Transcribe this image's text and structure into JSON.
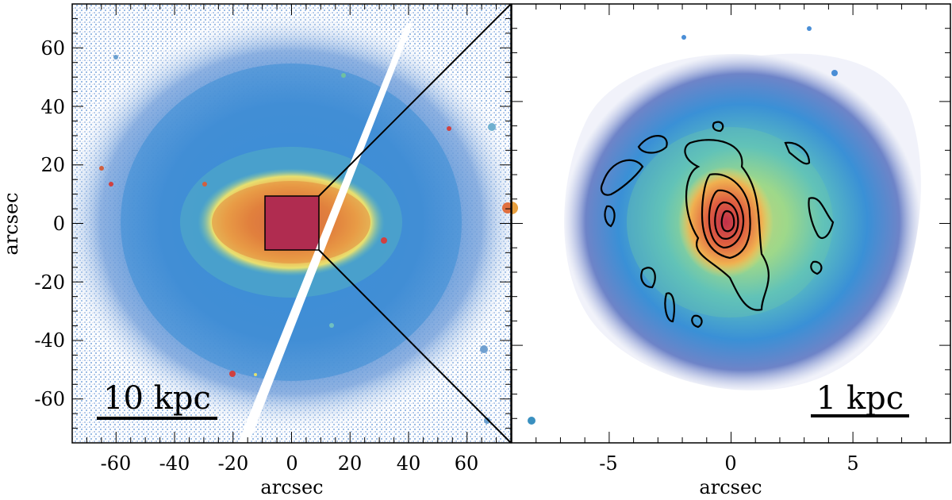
{
  "left_panel": {
    "scale_label": "10 kpc",
    "x_axis_title": "arcsec",
    "y_axis_title": "arcsec",
    "x_ticks": [
      "-60",
      "-40",
      "-20",
      "0",
      "20",
      "40",
      "60"
    ],
    "y_ticks": [
      "60",
      "40",
      "20",
      "0",
      "-20",
      "-40",
      "-60"
    ],
    "x_range": [
      -75,
      75
    ],
    "y_range": [
      -75,
      75
    ],
    "zoom_box_range": [
      -9,
      9
    ]
  },
  "right_panel": {
    "scale_label": "1 kpc",
    "x_axis_title": "arcsec",
    "x_ticks": [
      "-5",
      "0",
      "5"
    ],
    "x_range": [
      -9,
      9
    ]
  },
  "colors": {
    "outer": "#2f8fd0",
    "mid": "#6fb8b0",
    "yellow": "#e8e070",
    "orange": "#e88040",
    "core": "#b02c50",
    "halo": "#9aa8d8",
    "contour": "#000000"
  }
}
